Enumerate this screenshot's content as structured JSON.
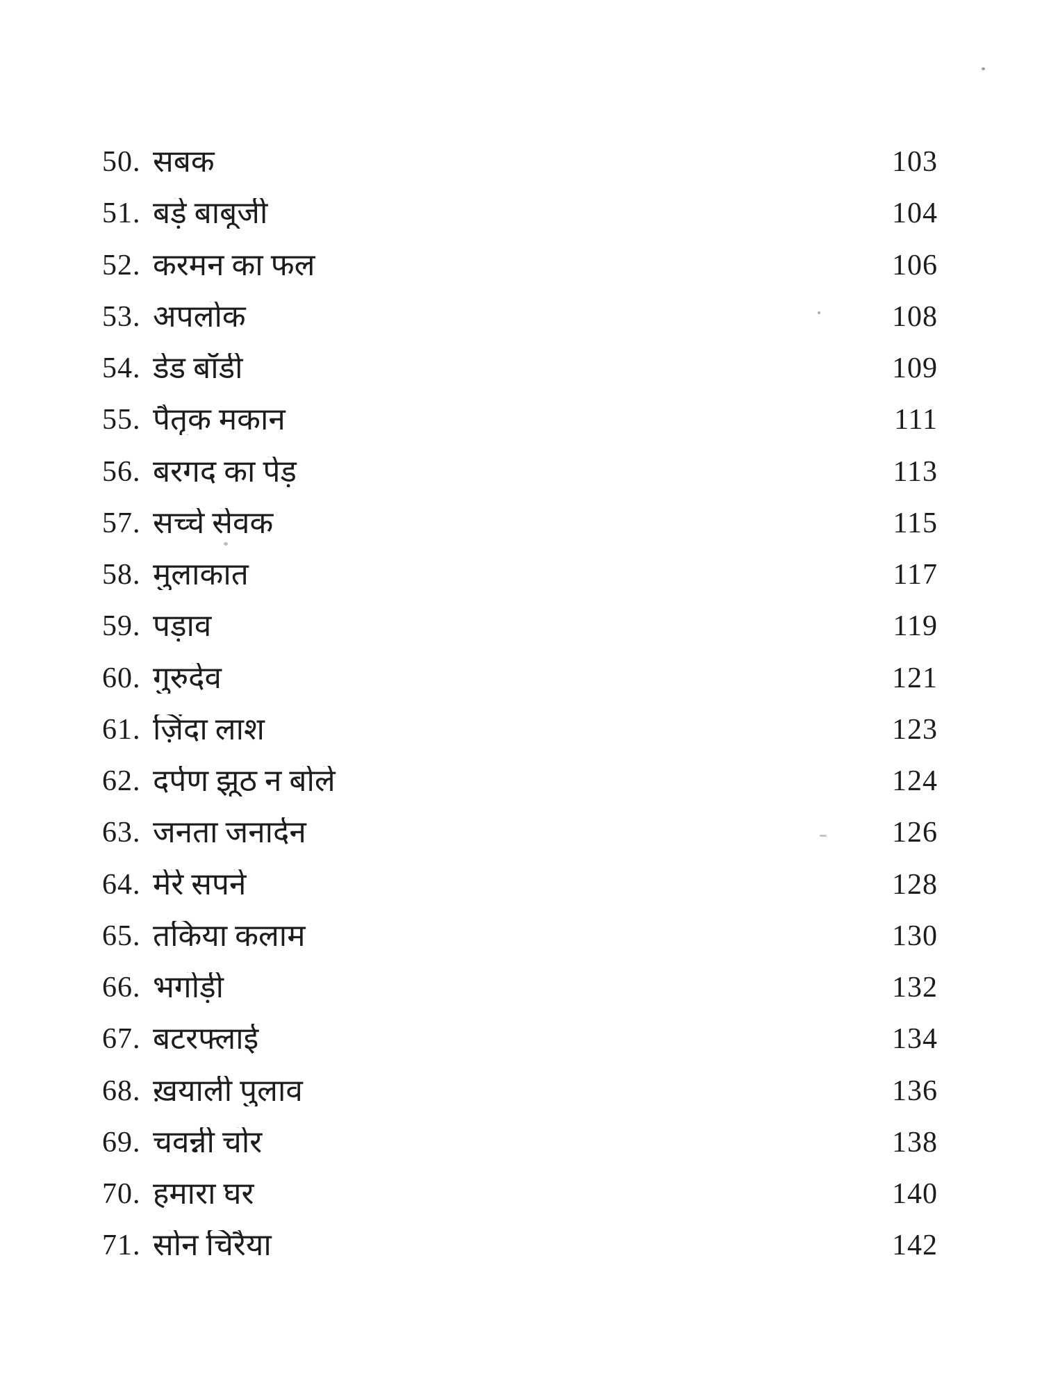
{
  "page": {
    "kind": "book-table-of-contents-scan",
    "background_color": "#ffffff",
    "ink_color": "#1c1c1c"
  },
  "toc": {
    "entries": [
      {
        "num": "50.",
        "title": "सबक",
        "page": "103"
      },
      {
        "num": "51.",
        "title": "बड़े बाबूजी",
        "page": "104"
      },
      {
        "num": "52.",
        "title": "करमन का फल",
        "page": "106"
      },
      {
        "num": "53.",
        "title": "अपलोक",
        "page": "108"
      },
      {
        "num": "54.",
        "title": "डेड बॉडी",
        "page": "109"
      },
      {
        "num": "55.",
        "title": "पैतृक मकान",
        "page": "111"
      },
      {
        "num": "56.",
        "title": "बरगद का पेड़",
        "page": "113"
      },
      {
        "num": "57.",
        "title": "सच्चे सेवक",
        "page": "115"
      },
      {
        "num": "58.",
        "title": "मुलाकात",
        "page": "117"
      },
      {
        "num": "59.",
        "title": "पड़ाव",
        "page": "119"
      },
      {
        "num": "60.",
        "title": "गुरुदेव",
        "page": "121"
      },
      {
        "num": "61.",
        "title": "ज़िंदा लाश",
        "page": "123"
      },
      {
        "num": "62.",
        "title": "दर्पण झूठ न बोले",
        "page": "124"
      },
      {
        "num": "63.",
        "title": "जनता जनार्दन",
        "page": "126"
      },
      {
        "num": "64.",
        "title": "मेरे सपने",
        "page": "128"
      },
      {
        "num": "65.",
        "title": "तकिया कलाम",
        "page": "130"
      },
      {
        "num": "66.",
        "title": "भगोड़ी",
        "page": "132"
      },
      {
        "num": "67.",
        "title": "बटरफ्लाई",
        "page": "134"
      },
      {
        "num": "68.",
        "title": "ख़याली पुलाव",
        "page": "136"
      },
      {
        "num": "69.",
        "title": "चवन्नी चोर",
        "page": "138"
      },
      {
        "num": "70.",
        "title": "हमारा घर",
        "page": "140"
      },
      {
        "num": "71.",
        "title": "सोन चिरैया",
        "page": "142"
      }
    ]
  }
}
